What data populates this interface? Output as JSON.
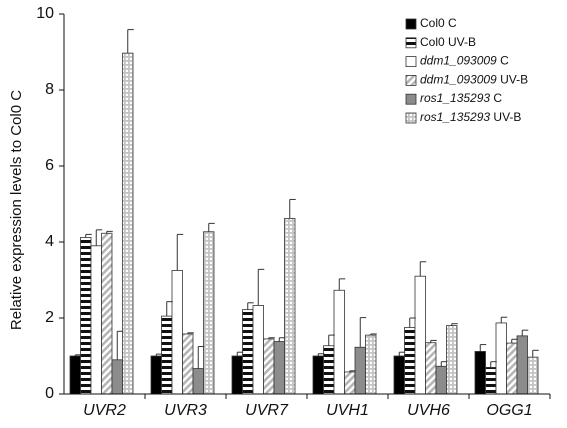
{
  "chart_data": {
    "type": "bar",
    "ylabel": "Relative expression levels to Col0 C",
    "xlabel": "",
    "ylim": [
      0,
      10
    ],
    "yticks": [
      0,
      2,
      4,
      6,
      8,
      10
    ],
    "grid": false,
    "legend_position": "top-right",
    "categories": [
      "UVR2",
      "UVR3",
      "UVR7",
      "UVH1",
      "UVH6",
      "OGG1"
    ],
    "series": [
      {
        "name": "Col0 C",
        "legend_italic": "",
        "legend_plain": "Col0 C",
        "fill": "solid-black",
        "values": [
          1.0,
          1.0,
          1.0,
          1.0,
          1.0,
          1.12
        ],
        "errors": [
          0.03,
          0.05,
          0.1,
          0.06,
          0.1,
          0.18
        ]
      },
      {
        "name": "Col0 UV-B",
        "legend_italic": "",
        "legend_plain": "Col0 UV-B",
        "fill": "black-white-horizontal-stripes",
        "values": [
          4.12,
          2.05,
          2.22,
          1.27,
          1.75,
          0.7
        ],
        "errors": [
          0.08,
          0.38,
          0.18,
          0.28,
          0.25,
          0.15
        ]
      },
      {
        "name": "ddm1_093009 C",
        "legend_italic": "ddm1_093009",
        "legend_plain": " C",
        "fill": "white",
        "values": [
          3.9,
          3.25,
          2.33,
          2.73,
          3.1,
          1.87
        ],
        "errors": [
          0.42,
          0.95,
          0.95,
          0.3,
          0.38,
          0.15
        ]
      },
      {
        "name": "ddm1_093009 UV-B",
        "legend_italic": "ddm1_093009",
        "legend_plain": " UV-B",
        "fill": "light-gray-diagonal-stripes",
        "values": [
          4.23,
          1.58,
          1.45,
          0.58,
          1.35,
          1.34
        ],
        "errors": [
          0.05,
          0.03,
          0.03,
          0.03,
          0.06,
          0.1
        ]
      },
      {
        "name": "ros1_135293 C",
        "legend_italic": "ros1_135293",
        "legend_plain": " C",
        "fill": "solid-gray",
        "values": [
          0.9,
          0.67,
          1.38,
          1.23,
          0.73,
          1.53
        ],
        "errors": [
          0.75,
          0.58,
          0.1,
          0.78,
          0.12,
          0.15
        ]
      },
      {
        "name": "ros1_135293 UV-B",
        "legend_italic": "ros1_135293",
        "legend_plain": " UV-B",
        "fill": "light-gray-grid",
        "values": [
          8.97,
          4.27,
          4.62,
          1.55,
          1.8,
          0.97
        ],
        "errors": [
          0.62,
          0.22,
          0.5,
          0.03,
          0.05,
          0.18
        ]
      }
    ]
  }
}
